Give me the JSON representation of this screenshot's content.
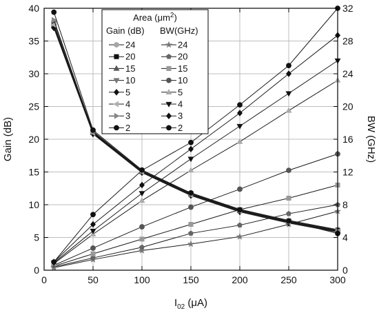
{
  "chart_data": {
    "type": "line",
    "x": [
      10,
      50,
      100,
      150,
      200,
      250,
      300
    ],
    "xlabel": {
      "main": "I",
      "sub": "02",
      "unit": " (μA)"
    },
    "xticks": [
      0,
      50,
      100,
      150,
      200,
      250,
      300
    ],
    "xlim": [
      0,
      300
    ],
    "ylabel_left": "Gain (dB)",
    "ylim_left": [
      0,
      40
    ],
    "yticks_left": [
      0,
      5,
      10,
      15,
      20,
      25,
      30,
      35,
      40
    ],
    "ylabel_right": "BW (GHz)",
    "ylim_right": [
      0,
      32
    ],
    "yticks_right": [
      0,
      4,
      8,
      12,
      16,
      20,
      24,
      28,
      32
    ],
    "grid": true,
    "legend": {
      "position": "top-left-center",
      "title_prefix": "Area (μm",
      "title_sup": "2",
      "title_suffix": ")",
      "col_gain": "Gain (dB)",
      "col_bw": "BW(GHz)"
    },
    "gain_series": [
      {
        "name": "24",
        "marker": "circle",
        "color": "#a6a6a6",
        "values": [
          38.0,
          21.2,
          15.2,
          11.8,
          9.3,
          7.6,
          6.2
        ]
      },
      {
        "name": "20",
        "marker": "square",
        "color": "#111111",
        "values": [
          37.6,
          21.1,
          15.1,
          11.7,
          9.2,
          7.5,
          6.1
        ]
      },
      {
        "name": "15",
        "marker": "triangle-up",
        "color": "#555555",
        "values": [
          37.4,
          21.0,
          15.0,
          11.6,
          9.1,
          7.4,
          6.0
        ]
      },
      {
        "name": "10",
        "marker": "triangle-down",
        "color": "#777777",
        "values": [
          37.2,
          20.9,
          15.0,
          11.5,
          9.0,
          7.3,
          5.9
        ]
      },
      {
        "name": "5",
        "marker": "diamond",
        "color": "#111111",
        "values": [
          37.0,
          20.8,
          14.9,
          11.4,
          8.9,
          7.2,
          5.8
        ]
      },
      {
        "name": "4",
        "marker": "triangle-left",
        "color": "#b0b0b0",
        "values": [
          37.5,
          21.0,
          15.0,
          11.5,
          9.0,
          7.3,
          5.9
        ]
      },
      {
        "name": "3",
        "marker": "triangle-right",
        "color": "#888888",
        "values": [
          38.2,
          21.1,
          15.1,
          11.6,
          9.1,
          7.4,
          6.0
        ]
      },
      {
        "name": "2",
        "marker": "circle",
        "color": "#111111",
        "values": [
          39.4,
          21.4,
          15.3,
          11.8,
          9.2,
          7.5,
          5.6
        ]
      }
    ],
    "bw_series": [
      {
        "name": "24",
        "marker": "star",
        "color": "#777777",
        "values": [
          0.3,
          1.3,
          2.4,
          3.2,
          4.1,
          5.6,
          7.2
        ]
      },
      {
        "name": "20",
        "marker": "pentagon",
        "color": "#666666",
        "values": [
          0.4,
          1.5,
          2.8,
          4.5,
          5.5,
          6.9,
          8.0
        ]
      },
      {
        "name": "15",
        "marker": "square",
        "color": "#999999",
        "values": [
          0.5,
          2.0,
          3.8,
          5.6,
          7.4,
          8.8,
          10.4
        ]
      },
      {
        "name": "10",
        "marker": "circle",
        "color": "#555555",
        "values": [
          0.6,
          2.7,
          5.3,
          7.7,
          9.9,
          12.2,
          14.2
        ]
      },
      {
        "name": "5",
        "marker": "triangle-up",
        "color": "#aaaaaa",
        "values": [
          0.8,
          4.4,
          8.5,
          12.2,
          15.7,
          19.5,
          23.2
        ]
      },
      {
        "name": "4",
        "marker": "triangle-down",
        "color": "#111111",
        "values": [
          0.9,
          4.8,
          9.4,
          13.6,
          17.6,
          21.6,
          25.6
        ]
      },
      {
        "name": "3",
        "marker": "diamond",
        "color": "#111111",
        "values": [
          1.0,
          5.6,
          10.4,
          14.8,
          19.2,
          24.0,
          28.7
        ]
      },
      {
        "name": "2",
        "marker": "circle",
        "color": "#111111",
        "values": [
          1.0,
          6.8,
          12.2,
          15.6,
          20.2,
          25.0,
          32.0
        ]
      }
    ]
  }
}
